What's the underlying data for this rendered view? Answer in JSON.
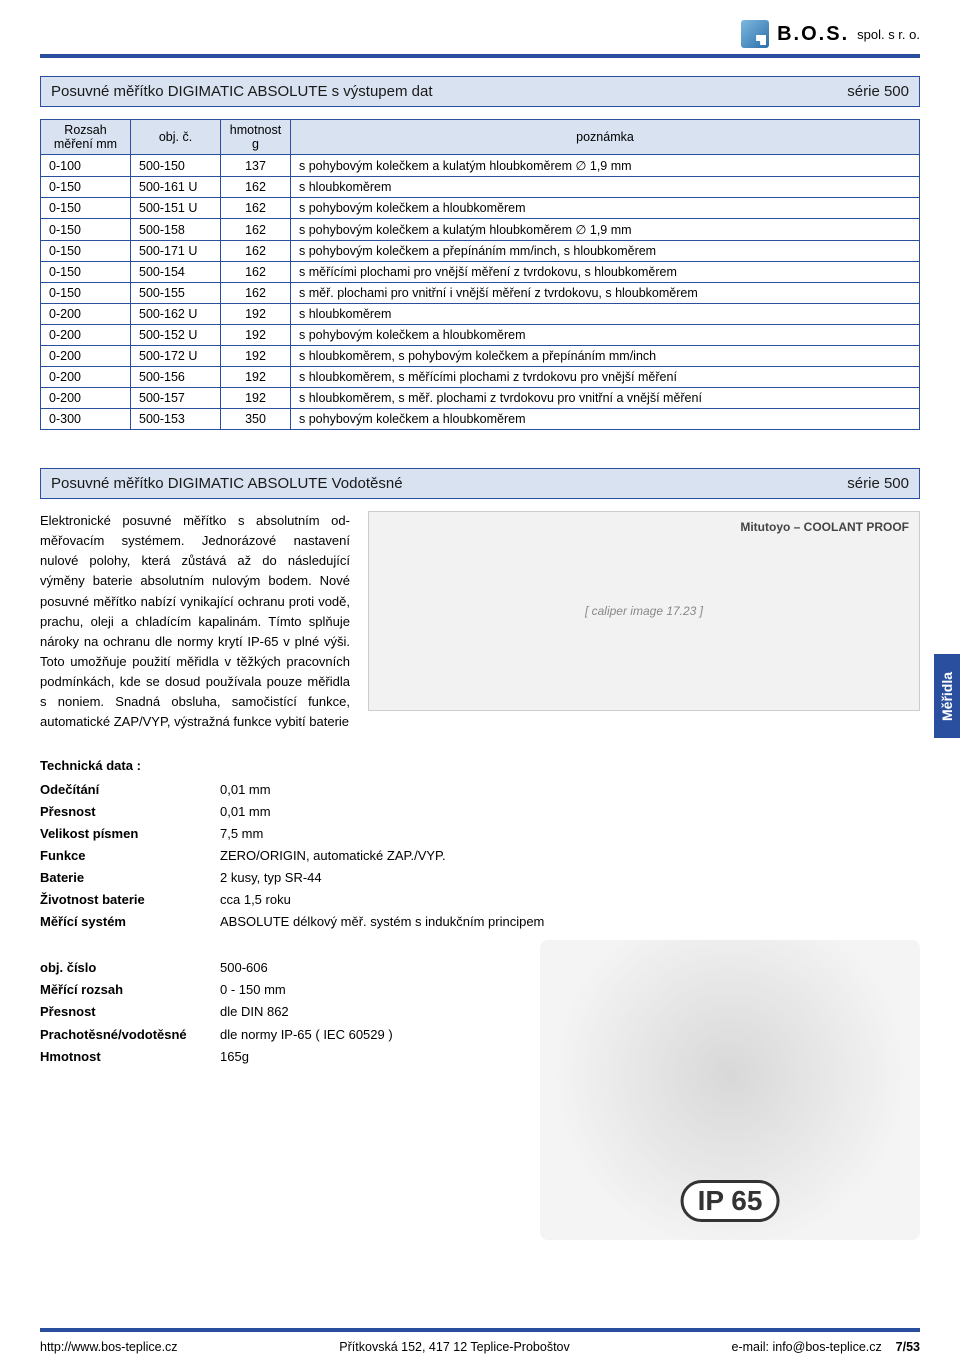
{
  "company": {
    "name": "B.O.S.",
    "suffix": "spol. s r. o."
  },
  "section1": {
    "title": "Posuvné měřítko DIGIMATIC ABSOLUTE s výstupem dat",
    "series": "série 500"
  },
  "table1": {
    "columns": [
      "Rozsah měření mm",
      "obj. č.",
      "hmotnost g",
      "poznámka"
    ],
    "rows": [
      [
        "0-100",
        "500-150",
        "137",
        "s pohybovým kolečkem a kulatým hloubkoměrem ∅ 1,9 mm"
      ],
      [
        "0-150",
        "500-161 U",
        "162",
        "s hloubkoměrem"
      ],
      [
        "0-150",
        "500-151 U",
        "162",
        "s pohybovým kolečkem a hloubkoměrem"
      ],
      [
        "0-150",
        "500-158",
        "162",
        "s pohybovým kolečkem a kulatým hloubkoměrem ∅ 1,9 mm"
      ],
      [
        "0-150",
        "500-171 U",
        "162",
        "s pohybovým kolečkem a přepínáním mm/inch, s hloubkoměrem"
      ],
      [
        "0-150",
        "500-154",
        "162",
        "s měřícími plochami pro vnější měření z tvrdokovu, s hloubkoměrem"
      ],
      [
        "0-150",
        "500-155",
        "162",
        "s měř. plochami pro vnitřní i vnější měření z tvrdokovu, s hloubkoměrem"
      ],
      [
        "0-200",
        "500-162 U",
        "192",
        "s hloubkoměrem"
      ],
      [
        "0-200",
        "500-152 U",
        "192",
        "s pohybovým kolečkem a hloubkoměrem"
      ],
      [
        "0-200",
        "500-172 U",
        "192",
        "s hloubkoměrem, s pohybovým kolečkem a přepínáním mm/inch"
      ],
      [
        "0-200",
        "500-156",
        "192",
        "s hloubkoměrem, s měřícími plochami z tvrdokovu pro vnější měření"
      ],
      [
        "0-200",
        "500-157",
        "192",
        "s hloubkoměrem, s měř. plochami z tvrdokovu pro vnitřní a vnější měření"
      ],
      [
        "0-300",
        "500-153",
        "350",
        "s pohybovým kolečkem a hloubkoměrem"
      ]
    ]
  },
  "section2": {
    "title": "Posuvné měřítko DIGIMATIC ABSOLUTE Vodotěsné",
    "series": "série 500"
  },
  "desc": "Elektronické posuvné měřítko s absolutním od­měřovacím systémem. Jednorázové nastavení nulové polohy, která zůstává až do následující výměny baterie absolutním nulovým bodem. Nové posuvné měřítko nabízí vynikající ochra­nu proti vodě, prachu, oleji a chladícím kapali­nám. Tímto splňuje nároky na ochranu dle normy krytí IP-65 v plné výši. Toto umožňuje použití měřidla v těžkých pracovních podmín­kách, kde se dosud používala pouze měřidla s noniem. Snadná obsluha, samočistící funkce, automatické ZAP/VYP, výstražná funkce vybití baterie",
  "sidetab": "Měřidla",
  "tech": {
    "header": "Technická data :",
    "rows": [
      [
        "Odečítání",
        "0,01 mm"
      ],
      [
        "Přesnost",
        "0,01 mm"
      ],
      [
        "Velikost písmen",
        "7,5 mm"
      ],
      [
        "Funkce",
        "ZERO/ORIGIN, automatické ZAP./VYP."
      ],
      [
        "Baterie",
        "2 kusy, typ SR-44"
      ],
      [
        "Životnost baterie",
        "cca 1,5 roku"
      ],
      [
        "Měřící systém",
        "ABSOLUTE délkový měř. systém s indukčním principem"
      ]
    ]
  },
  "obj": {
    "rows": [
      [
        "obj. číslo",
        "500-606"
      ],
      [
        "Měřící rozsah",
        "0 - 150 mm"
      ],
      [
        "Přesnost",
        "dle DIN 862"
      ],
      [
        "Prachotěsné/vodotěsné",
        "dle normy IP-65 ( IEC 60529 )"
      ],
      [
        "Hmotnost",
        "165g"
      ]
    ]
  },
  "ip": "IP 65",
  "footer": {
    "left": "http://www.bos-teplice.cz",
    "center": "Přítkovská 152, 417 12 Teplice-Proboštov",
    "rightEmail": "e-mail: info@bos-teplice.cz",
    "page": "7/53"
  }
}
